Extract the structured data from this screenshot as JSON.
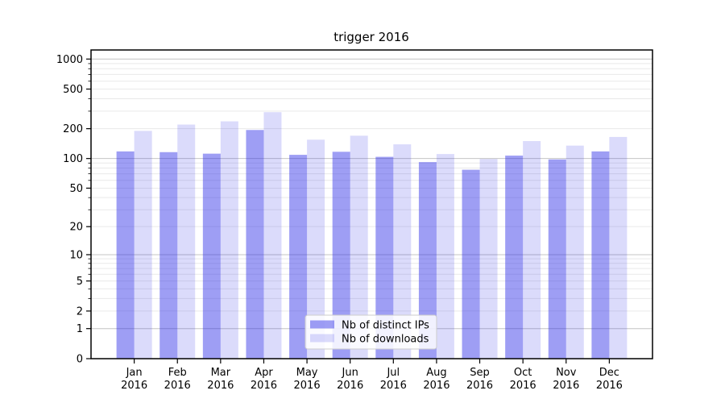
{
  "chart_data": {
    "type": "bar",
    "title": "trigger 2016",
    "categories": [
      "Jan",
      "Feb",
      "Mar",
      "Apr",
      "May",
      "Jun",
      "Jul",
      "Aug",
      "Sep",
      "Oct",
      "Nov",
      "Dec"
    ],
    "category_year": "2016",
    "series": [
      {
        "key": "ips",
        "name": "Nb of distinct IPs",
        "base_color": "#2828e6",
        "alpha": 0.45,
        "composited_hex": "#9e9ef4",
        "values": [
          118,
          116,
          112,
          194,
          109,
          117,
          104,
          92,
          77,
          107,
          98,
          118
        ]
      },
      {
        "key": "downloads",
        "name": "Nb of downloads",
        "base_color": "#2828e6",
        "alpha": 0.17,
        "composited_hex": "#dbdbfb",
        "values": [
          190,
          220,
          237,
          293,
          155,
          170,
          139,
          111,
          99,
          150,
          135,
          165
        ]
      }
    ],
    "xlabel": "",
    "ylabel": "",
    "yscale": "log1p",
    "y_tick_values": [
      0,
      1,
      2,
      5,
      10,
      20,
      50,
      100,
      200,
      500,
      1000
    ],
    "ylim": [
      0,
      1233
    ],
    "grid": {
      "horizontal": true,
      "minor": true,
      "major_color": "#c4c4c4",
      "minor_color": "#e9e9e9"
    },
    "legend": {
      "position": "lower-center-inside",
      "background": "#ffffff",
      "border_color": "#cccccc"
    }
  }
}
